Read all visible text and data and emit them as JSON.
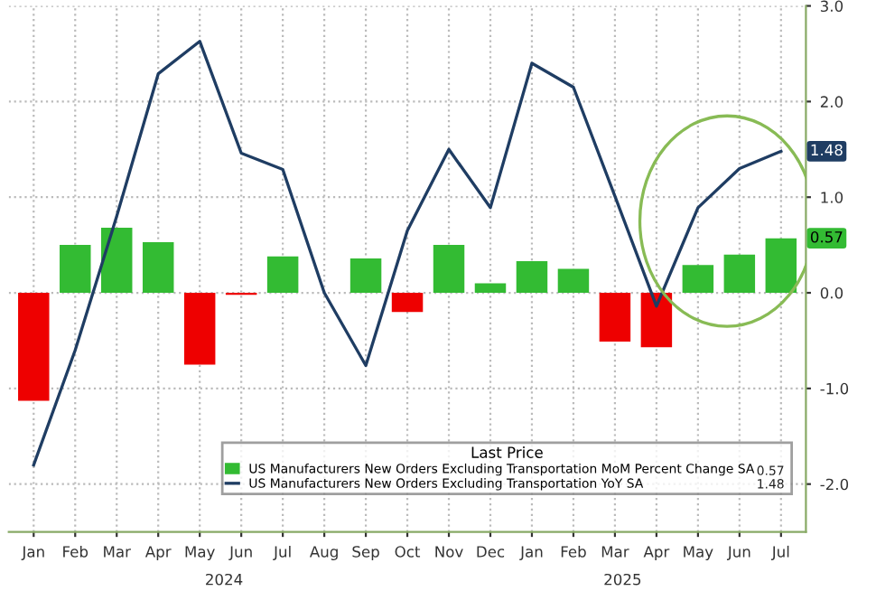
{
  "chart_data": {
    "type": "bar",
    "categories": [
      "Jan",
      "Feb",
      "Mar",
      "Apr",
      "May",
      "Jun",
      "Jul",
      "Aug",
      "Sep",
      "Oct",
      "Nov",
      "Dec",
      "Jan",
      "Feb",
      "Mar",
      "Apr",
      "May",
      "Jun",
      "Jul"
    ],
    "series": [
      {
        "name": "US Manufacturers New Orders Excluding Transportation MoM Percent Change SA",
        "color": "#33bb33",
        "colors": [
          "#ee0000",
          "#33bb33",
          "#33bb33",
          "#33bb33",
          "#ee0000",
          "#ee0000",
          "#33bb33",
          "#aaaaaa",
          "#33bb33",
          "#ee0000",
          "#33bb33",
          "#33bb33",
          "#33bb33",
          "#33bb33",
          "#ee0000",
          "#ee0000",
          "#33bb33",
          "#33bb33",
          "#33bb33"
        ],
        "values": [
          -1.13,
          0.5,
          0.68,
          0.53,
          -0.75,
          -0.02,
          0.38,
          0.0,
          0.36,
          -0.2,
          0.5,
          0.1,
          0.33,
          0.25,
          -0.51,
          -0.57,
          0.29,
          0.4,
          0.57
        ]
      },
      {
        "name": "US Manufacturers New Orders Excluding Transportation YoY SA",
        "type": "line",
        "color": "#1f3d63",
        "values": [
          -1.8,
          -0.6,
          0.8,
          2.29,
          2.63,
          1.46,
          1.29,
          0.0,
          -0.76,
          0.65,
          1.5,
          0.89,
          2.4,
          2.15,
          1.01,
          -0.14,
          0.89,
          1.3,
          1.48
        ]
      }
    ],
    "ylim": [
      -2.5,
      3.0
    ],
    "yticks": [
      {
        "value": 3,
        "label": "3.0"
      },
      {
        "value": 2,
        "label": "2.0"
      },
      {
        "value": 1,
        "label": "1.0"
      },
      {
        "value": 0,
        "label": "0.0"
      },
      {
        "value": -1,
        "label": "-1.0"
      },
      {
        "value": -2,
        "label": "-2.0"
      }
    ],
    "legend_title": "Last Price",
    "legend": "bottom right",
    "grid": true,
    "annotations": [
      "2024",
      "2025",
      "0.57",
      "1.48"
    ]
  }
}
